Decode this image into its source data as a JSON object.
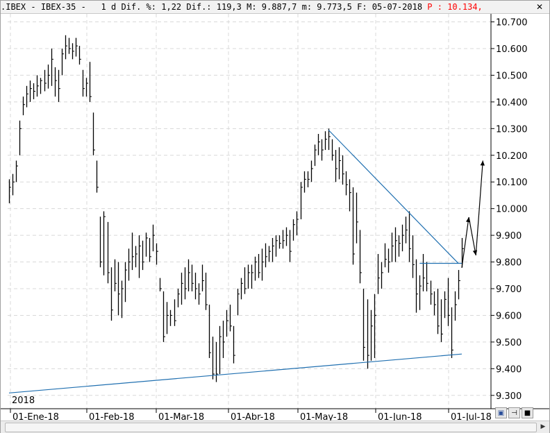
{
  "titlebar": {
    "symbol": ".IBEX",
    "name": "IBEX-35",
    "period": "1 d",
    "dif_pct_label": "Dif. %:",
    "dif_pct_value": "1,22",
    "dif_label": "Dif.:",
    "dif_value": "119,3",
    "max_label": "M:",
    "max_value": "9.887,7",
    "min_label": "m:",
    "min_value": "9.773,5",
    "date_label": "F:",
    "date_value": "05-07-2018",
    "price_label": "P :",
    "price_value": "10.134,"
  },
  "colors": {
    "bars": "#000000",
    "trendlines": "#1f6fb0",
    "grid": "#d8d8d8",
    "price_text": "#ff0000"
  },
  "chart_data": {
    "type": "ohlc",
    "year_label": "2018",
    "x_ticks": [
      "01-Ene-18",
      "01-Feb-18",
      "01-Mar-18",
      "01-Abr-18",
      "01-May-18",
      "01-Jun-18",
      "01-Jul-18"
    ],
    "y_ticks": [
      "9.300",
      "9.400",
      "9.500",
      "9.600",
      "9.700",
      "9.800",
      "9.900",
      "10.000",
      "10.100",
      "10.200",
      "10.300",
      "10.400",
      "10.500",
      "10.600",
      "10.700"
    ],
    "ylim": [
      9250,
      10730
    ],
    "grid": true,
    "bars": [
      [
        10110,
        10020,
        10080
      ],
      [
        10130,
        10050,
        10100
      ],
      [
        10180,
        10100,
        10160
      ],
      [
        10330,
        10200,
        10300
      ],
      [
        10420,
        10350,
        10390
      ],
      [
        10460,
        10380,
        10430
      ],
      [
        10480,
        10400,
        10450
      ],
      [
        10470,
        10410,
        10440
      ],
      [
        10500,
        10420,
        10460
      ],
      [
        10490,
        10430,
        10480
      ],
      [
        10520,
        10440,
        10470
      ],
      [
        10540,
        10450,
        10500
      ],
      [
        10600,
        10460,
        10560
      ],
      [
        10530,
        10420,
        10480
      ],
      [
        10520,
        10400,
        10450
      ],
      [
        10600,
        10500,
        10580
      ],
      [
        10650,
        10560,
        10610
      ],
      [
        10640,
        10580,
        10600
      ],
      [
        10620,
        10560,
        10590
      ],
      [
        10640,
        10570,
        10610
      ],
      [
        10610,
        10540,
        10560
      ],
      [
        10520,
        10420,
        10450
      ],
      [
        10490,
        10420,
        10470
      ],
      [
        10550,
        10400,
        10420
      ],
      [
        10360,
        10200,
        10220
      ],
      [
        10180,
        10060,
        10080
      ],
      [
        9970,
        9780,
        9800
      ],
      [
        9990,
        9750,
        9970
      ],
      [
        9950,
        9720,
        9760
      ],
      [
        9780,
        9580,
        9620
      ],
      [
        9810,
        9690,
        9720
      ],
      [
        9800,
        9600,
        9680
      ],
      [
        9730,
        9590,
        9700
      ],
      [
        9800,
        9650,
        9770
      ],
      [
        9850,
        9730,
        9800
      ],
      [
        9910,
        9770,
        9820
      ],
      [
        9860,
        9780,
        9830
      ],
      [
        9900,
        9740,
        9860
      ],
      [
        9880,
        9770,
        9800
      ],
      [
        9910,
        9820,
        9890
      ],
      [
        9890,
        9800,
        9820
      ],
      [
        9940,
        9840,
        9900
      ],
      [
        9870,
        9790,
        9840
      ],
      [
        9740,
        9690,
        9700
      ],
      [
        9690,
        9500,
        9520
      ],
      [
        9650,
        9530,
        9600
      ],
      [
        9620,
        9560,
        9600
      ],
      [
        9660,
        9560,
        9580
      ],
      [
        9700,
        9630,
        9680
      ],
      [
        9760,
        9640,
        9720
      ],
      [
        9780,
        9660,
        9700
      ],
      [
        9810,
        9690,
        9760
      ],
      [
        9790,
        9690,
        9720
      ],
      [
        9760,
        9660,
        9700
      ],
      [
        9720,
        9640,
        9680
      ],
      [
        9790,
        9690,
        9730
      ],
      [
        9760,
        9620,
        9640
      ],
      [
        9640,
        9440,
        9460
      ],
      [
        9520,
        9360,
        9380
      ],
      [
        9500,
        9350,
        9380
      ],
      [
        9560,
        9380,
        9520
      ],
      [
        9580,
        9440,
        9500
      ],
      [
        9620,
        9520,
        9580
      ],
      [
        9640,
        9540,
        9560
      ],
      [
        9560,
        9420,
        9450
      ],
      [
        9700,
        9600,
        9680
      ],
      [
        9740,
        9660,
        9720
      ],
      [
        9780,
        9680,
        9700
      ],
      [
        9790,
        9700,
        9760
      ],
      [
        9790,
        9700,
        9760
      ],
      [
        9820,
        9730,
        9800
      ],
      [
        9830,
        9740,
        9760
      ],
      [
        9850,
        9730,
        9800
      ],
      [
        9870,
        9780,
        9820
      ],
      [
        9860,
        9800,
        9840
      ],
      [
        9890,
        9800,
        9860
      ],
      [
        9900,
        9820,
        9880
      ],
      [
        9900,
        9850,
        9870
      ],
      [
        9920,
        9850,
        9880
      ],
      [
        9930,
        9860,
        9900
      ],
      [
        9920,
        9800,
        9840
      ],
      [
        9960,
        9880,
        9940
      ],
      [
        9990,
        9900,
        9960
      ],
      [
        10100,
        9960,
        10080
      ],
      [
        10140,
        10060,
        10110
      ],
      [
        10140,
        10080,
        10110
      ],
      [
        10180,
        10100,
        10150
      ],
      [
        10240,
        10160,
        10220
      ],
      [
        10280,
        10200,
        10250
      ],
      [
        10260,
        10180,
        10220
      ],
      [
        10290,
        10220,
        10260
      ],
      [
        10300,
        10220,
        10270
      ],
      [
        10260,
        10180,
        10200
      ],
      [
        10220,
        10100,
        10150
      ],
      [
        10230,
        10110,
        10180
      ],
      [
        10200,
        10090,
        10130
      ],
      [
        10140,
        10050,
        10090
      ],
      [
        10110,
        9990,
        10060
      ],
      [
        10080,
        9790,
        9830
      ],
      [
        10060,
        9870,
        9950
      ],
      [
        9920,
        9720,
        9760
      ],
      [
        9700,
        9430,
        9480
      ],
      [
        9660,
        9400,
        9450
      ],
      [
        9620,
        9430,
        9560
      ],
      [
        9680,
        9440,
        9600
      ],
      [
        9830,
        9680,
        9740
      ],
      [
        9800,
        9700,
        9760
      ],
      [
        9870,
        9780,
        9810
      ],
      [
        9850,
        9760,
        9800
      ],
      [
        9910,
        9800,
        9860
      ],
      [
        9930,
        9800,
        9880
      ],
      [
        9900,
        9820,
        9870
      ],
      [
        9940,
        9840,
        9900
      ],
      [
        9970,
        9870,
        9920
      ],
      [
        9990,
        9800,
        9850
      ],
      [
        9900,
        9740,
        9790
      ],
      [
        9810,
        9610,
        9680
      ],
      [
        9750,
        9620,
        9710
      ],
      [
        9830,
        9690,
        9740
      ],
      [
        9800,
        9690,
        9720
      ],
      [
        9730,
        9640,
        9680
      ],
      [
        9690,
        9600,
        9640
      ],
      [
        9700,
        9530,
        9560
      ],
      [
        9660,
        9500,
        9530
      ],
      [
        9690,
        9590,
        9660
      ],
      [
        9740,
        9560,
        9600
      ],
      [
        9630,
        9440,
        9470
      ],
      [
        9690,
        9580,
        9640
      ],
      [
        9770,
        9660,
        9730
      ],
      [
        9890,
        9780,
        9850
      ]
    ],
    "trendlines": [
      {
        "from": [
          0,
          9309
        ],
        "to": [
          129,
          9455
        ]
      },
      {
        "from": [
          91,
          10295
        ],
        "to": [
          123,
          9990
        ],
        "extend_to": [
          128,
          9795
        ]
      },
      {
        "from": [
          117,
          9795
        ],
        "to": [
          129,
          9795
        ]
      }
    ],
    "projection": [
      [
        129,
        9778
      ],
      [
        131,
        9968
      ],
      [
        133,
        9825
      ],
      [
        135,
        10180
      ]
    ]
  },
  "toolbar": {
    "save_icon": "save-icon",
    "pin_icon": "pin-icon",
    "stop_icon": "stop-icon"
  }
}
